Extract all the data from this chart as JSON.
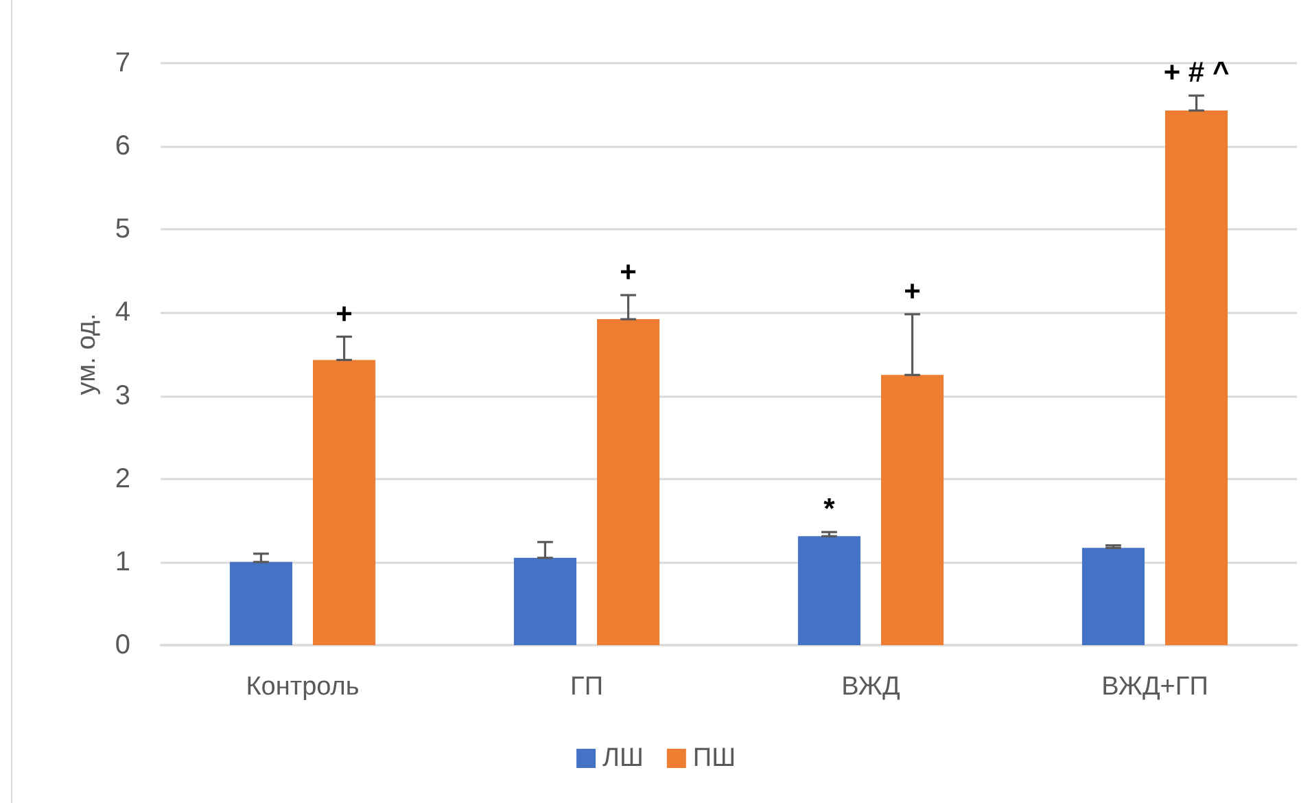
{
  "chart_data": {
    "type": "bar",
    "ylabel": "ум. од.",
    "categories": [
      "Контроль",
      "ГП",
      "ВЖД",
      "ВЖД+ГП"
    ],
    "series": [
      {
        "name": "ЛШ",
        "color": "#4472c4",
        "values": [
          1.0,
          1.05,
          1.31,
          1.17
        ],
        "errors": [
          [
            1.0,
            1.1
          ],
          [
            1.05,
            1.24
          ],
          [
            1.31,
            1.36
          ],
          [
            1.17,
            1.2
          ]
        ]
      },
      {
        "name": "ПШ",
        "color": "#ed7d31",
        "values": [
          3.43,
          3.92,
          3.25,
          6.43
        ],
        "errors": [
          [
            3.43,
            3.71
          ],
          [
            3.92,
            4.21
          ],
          [
            3.25,
            3.98
          ],
          [
            6.43,
            6.61
          ]
        ]
      }
    ],
    "ylim": [
      0,
      7
    ],
    "yticks": [
      0,
      1,
      2,
      3,
      4,
      5,
      6,
      7
    ],
    "grid": "y",
    "legend": "bottom",
    "annotations": [
      "+",
      "+",
      "*",
      "+",
      "+ # ^"
    ]
  }
}
